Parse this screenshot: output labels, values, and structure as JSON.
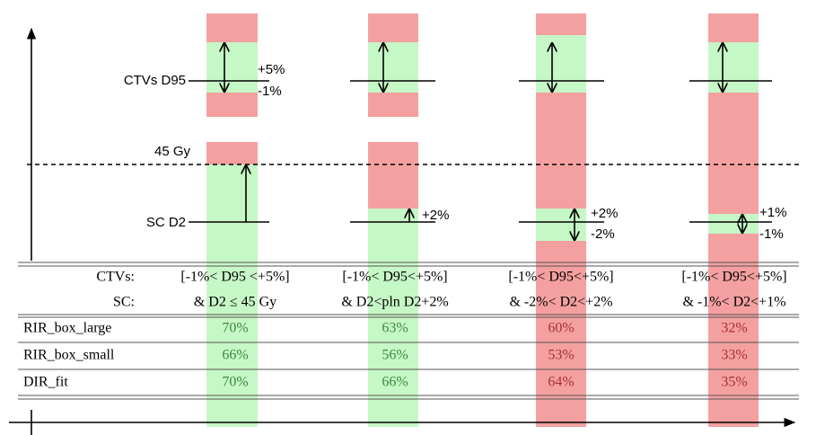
{
  "diagram": {
    "labels": {
      "ctv_d95": "CTVs D95",
      "plus": "+5%",
      "minus": "-1%",
      "gy45": "45 Gy",
      "sc_d2": "SC D2"
    },
    "annotations": [
      [
        "+2%"
      ],
      [
        "+2%",
        "-2%"
      ],
      [
        "+1%",
        "-1%"
      ]
    ]
  },
  "table": {
    "header_labels": [
      "CTVs:",
      "SC:"
    ],
    "columns": [
      [
        "[-1%< D95 <+5%]",
        "& D2 ≤ 45 Gy"
      ],
      [
        "[-1%< D95<+5%]",
        "& D2<pln D2+2%"
      ],
      [
        "[-1%< D95<+5%]",
        "& -2%< D2<+2%"
      ],
      [
        "[-1%< D95<+5%]",
        "& -1%< D2<+1%"
      ]
    ],
    "rows": [
      {
        "label": "RIR_box_large",
        "values": [
          "70%",
          "63%",
          "60%",
          "32%"
        ]
      },
      {
        "label": "RIR_box_small",
        "values": [
          "66%",
          "56%",
          "53%",
          "33%"
        ]
      },
      {
        "label": "DIR_fit",
        "values": [
          "70%",
          "66%",
          "64%",
          "35%"
        ]
      }
    ]
  }
}
